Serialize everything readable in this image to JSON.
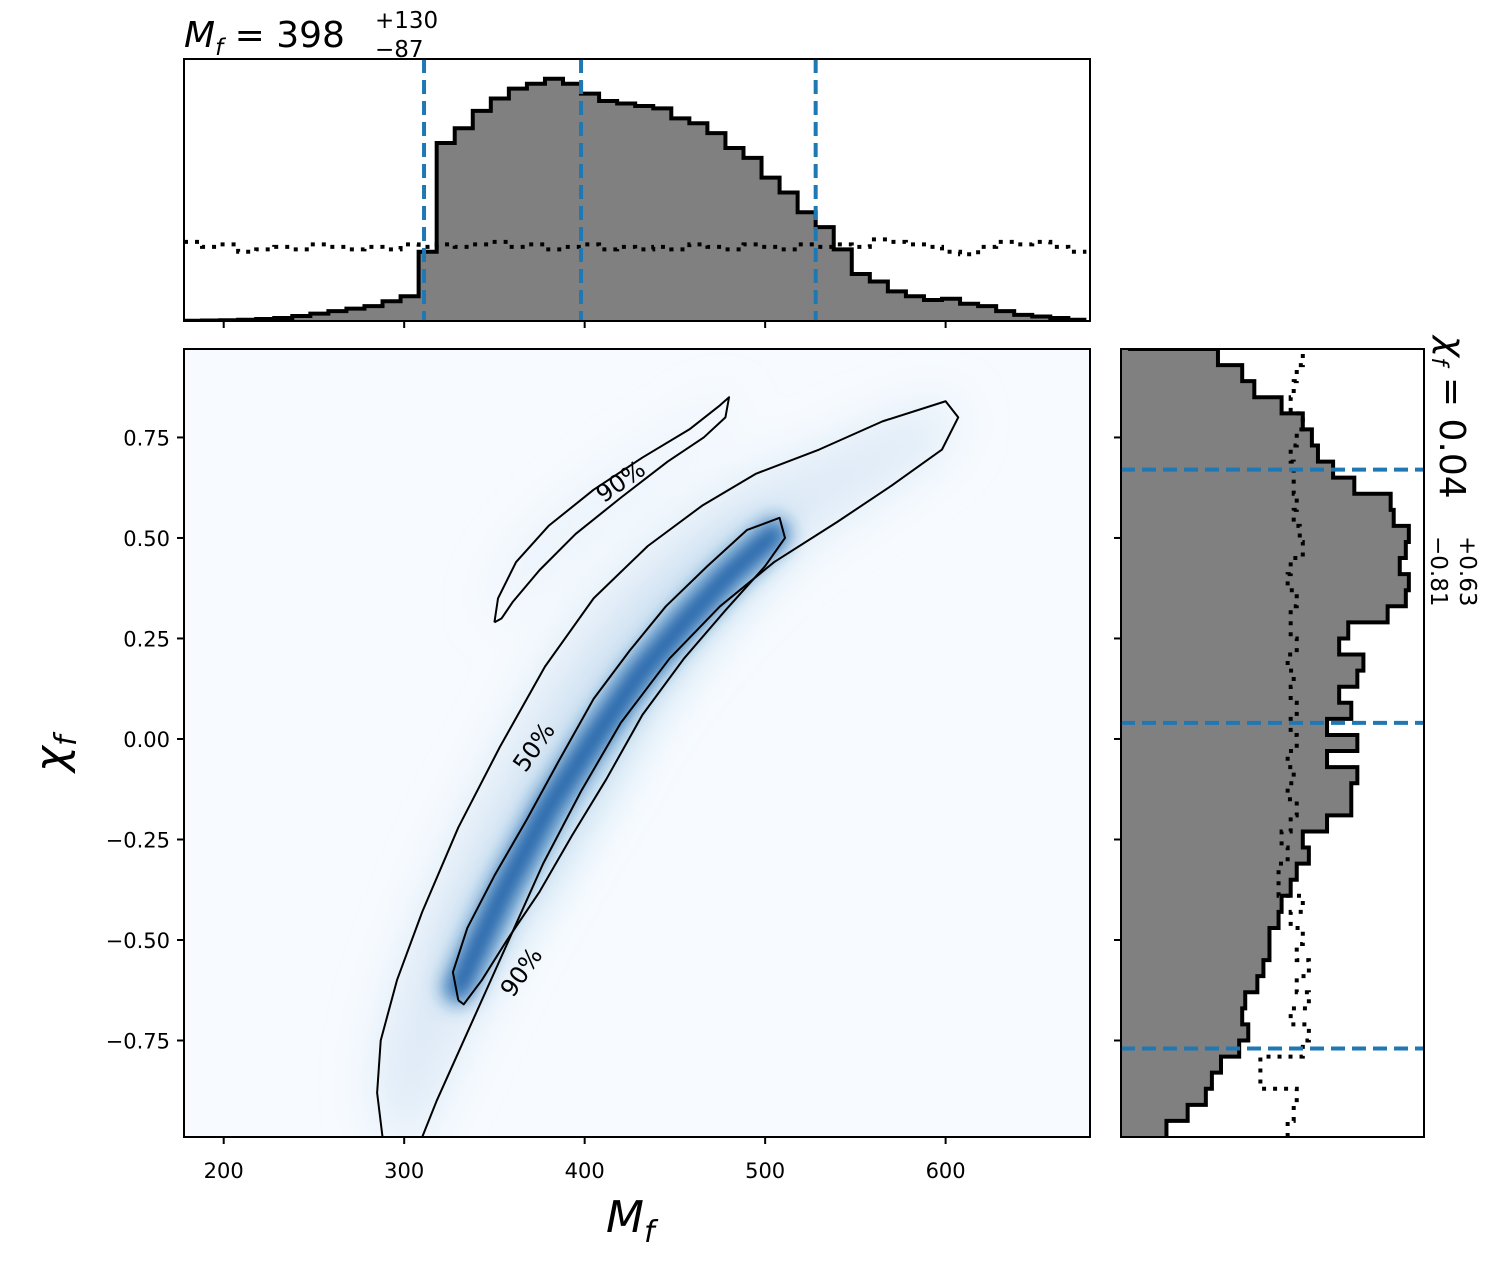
{
  "chart_data": {
    "type": "corner",
    "main": {
      "type": "heatmap",
      "xlabel": "M",
      "xlabel_sub": "f",
      "ylabel": "χ",
      "ylabel_sub": "f",
      "xlim": [
        178,
        680
      ],
      "ylim": [
        -0.99,
        0.97
      ],
      "xticks": [
        200,
        300,
        400,
        500,
        600
      ],
      "yticks": [
        0.75,
        0.5,
        0.25,
        0.0,
        -0.25,
        -0.5,
        -0.75
      ],
      "ytick_labels": [
        "0.75",
        "0.50",
        "0.25",
        "0.00",
        "−0.25",
        "−0.50",
        "−0.75"
      ],
      "colormap": "Blues",
      "density_ridge": {
        "x": [
          330,
          355,
          380,
          405,
          430,
          455,
          480,
          505
        ],
        "y": [
          -0.62,
          -0.38,
          -0.17,
          0.0,
          0.16,
          0.29,
          0.41,
          0.51
        ]
      },
      "contours": [
        {
          "label": "50%",
          "level": 0.5,
          "path": [
            [
              330,
              -0.65
            ],
            [
              327,
              -0.58
            ],
            [
              335,
              -0.47
            ],
            [
              350,
              -0.34
            ],
            [
              368,
              -0.2
            ],
            [
              385,
              -0.06
            ],
            [
              405,
              0.1
            ],
            [
              425,
              0.22
            ],
            [
              445,
              0.33
            ],
            [
              468,
              0.43
            ],
            [
              490,
              0.52
            ],
            [
              508,
              0.55
            ],
            [
              511,
              0.5
            ],
            [
              500,
              0.43
            ],
            [
              478,
              0.32
            ],
            [
              455,
              0.2
            ],
            [
              432,
              0.06
            ],
            [
              412,
              -0.1
            ],
            [
              393,
              -0.24
            ],
            [
              375,
              -0.38
            ],
            [
              357,
              -0.5
            ],
            [
              343,
              -0.6
            ],
            [
              333,
              -0.66
            ],
            [
              330,
              -0.65
            ]
          ]
        },
        {
          "label": "90%",
          "level": 0.9,
          "path": [
            [
              288,
              -0.99
            ],
            [
              285,
              -0.88
            ],
            [
              287,
              -0.75
            ],
            [
              296,
              -0.6
            ],
            [
              310,
              -0.43
            ],
            [
              330,
              -0.22
            ],
            [
              353,
              -0.02
            ],
            [
              378,
              0.18
            ],
            [
              405,
              0.35
            ],
            [
              435,
              0.48
            ],
            [
              465,
              0.58
            ],
            [
              495,
              0.66
            ],
            [
              530,
              0.72
            ],
            [
              565,
              0.79
            ],
            [
              600,
              0.84
            ],
            [
              607,
              0.8
            ],
            [
              598,
              0.72
            ],
            [
              570,
              0.63
            ],
            [
              540,
              0.54
            ],
            [
              505,
              0.44
            ],
            [
              475,
              0.33
            ],
            [
              447,
              0.2
            ],
            [
              420,
              0.04
            ],
            [
              398,
              -0.13
            ],
            [
              377,
              -0.31
            ],
            [
              360,
              -0.48
            ],
            [
              345,
              -0.63
            ],
            [
              330,
              -0.78
            ],
            [
              318,
              -0.9
            ],
            [
              310,
              -0.99
            ]
          ]
        },
        {
          "label": "90%",
          "level": 0.9,
          "path": [
            [
              350,
              0.29
            ],
            [
              352,
              0.35
            ],
            [
              362,
              0.44
            ],
            [
              380,
              0.53
            ],
            [
              405,
              0.62
            ],
            [
              432,
              0.7
            ],
            [
              458,
              0.77
            ],
            [
              475,
              0.83
            ],
            [
              480,
              0.85
            ],
            [
              478,
              0.8
            ],
            [
              466,
              0.75
            ],
            [
              446,
              0.69
            ],
            [
              420,
              0.6
            ],
            [
              395,
              0.51
            ],
            [
              375,
              0.42
            ],
            [
              360,
              0.34
            ],
            [
              354,
              0.3
            ],
            [
              350,
              0.29
            ]
          ]
        }
      ],
      "contour_labels": [
        {
          "text": "90%",
          "x": 420,
          "y": 0.64,
          "rotation": -35
        },
        {
          "text": "50%",
          "x": 372,
          "y": -0.02,
          "rotation": -55
        },
        {
          "text": "90%",
          "x": 365,
          "y": -0.58,
          "rotation": -55
        }
      ]
    },
    "top_hist": {
      "type": "histogram",
      "parameter": "M_f",
      "title_prefix": "M",
      "title_sub": "f",
      "title_value": " = 398",
      "title_plus": "+130",
      "title_minus": "−87",
      "median": 398,
      "upper": 528,
      "lower": 311,
      "x_edges_start": 178,
      "bin_width": 10,
      "posterior": [
        0.001,
        0.002,
        0.003,
        0.005,
        0.008,
        0.012,
        0.02,
        0.03,
        0.04,
        0.05,
        0.06,
        0.08,
        0.1,
        0.28,
        0.72,
        0.78,
        0.85,
        0.9,
        0.94,
        0.96,
        0.98,
        0.96,
        0.92,
        0.89,
        0.88,
        0.87,
        0.86,
        0.82,
        0.8,
        0.76,
        0.7,
        0.66,
        0.58,
        0.52,
        0.44,
        0.38,
        0.29,
        0.19,
        0.16,
        0.12,
        0.1,
        0.085,
        0.09,
        0.07,
        0.06,
        0.04,
        0.025,
        0.018,
        0.012,
        0.005
      ],
      "prior": [
        0.32,
        0.3,
        0.31,
        0.28,
        0.29,
        0.3,
        0.29,
        0.31,
        0.3,
        0.29,
        0.3,
        0.29,
        0.31,
        0.3,
        0.31,
        0.3,
        0.31,
        0.32,
        0.3,
        0.31,
        0.29,
        0.3,
        0.31,
        0.29,
        0.3,
        0.29,
        0.3,
        0.29,
        0.31,
        0.3,
        0.29,
        0.31,
        0.3,
        0.29,
        0.31,
        0.3,
        0.31,
        0.3,
        0.33,
        0.32,
        0.31,
        0.3,
        0.28,
        0.27,
        0.3,
        0.32,
        0.31,
        0.32,
        0.3,
        0.28
      ],
      "ylim": [
        0,
        1.06
      ]
    },
    "right_hist": {
      "type": "histogram",
      "orientation": "horizontal",
      "parameter": "chi_f",
      "title_prefix": "χ",
      "title_sub": "f",
      "title_value": " = 0.04",
      "title_plus": "+0.63",
      "title_minus": "−0.81",
      "median": 0.04,
      "upper": 0.67,
      "lower": -0.77,
      "y_edges_start": -0.99,
      "bin_width": 0.04,
      "posterior": [
        0.15,
        0.22,
        0.28,
        0.3,
        0.33,
        0.39,
        0.42,
        0.4,
        0.41,
        0.45,
        0.47,
        0.49,
        0.49,
        0.52,
        0.53,
        0.56,
        0.58,
        0.62,
        0.6,
        0.68,
        0.76,
        0.76,
        0.78,
        0.68,
        0.78,
        0.68,
        0.76,
        0.72,
        0.78,
        0.8,
        0.72,
        0.75,
        0.88,
        0.94,
        0.95,
        0.92,
        0.94,
        0.95,
        0.9,
        0.89,
        0.77,
        0.7,
        0.65,
        0.63,
        0.6,
        0.53,
        0.44,
        0.4,
        0.32,
        0.03
      ],
      "prior": [
        0.55,
        0.57,
        0.58,
        0.46,
        0.46,
        0.6,
        0.62,
        0.56,
        0.62,
        0.58,
        0.62,
        0.58,
        0.6,
        0.56,
        0.6,
        0.52,
        0.52,
        0.55,
        0.53,
        0.56,
        0.58,
        0.55,
        0.57,
        0.55,
        0.58,
        0.56,
        0.58,
        0.56,
        0.57,
        0.55,
        0.58,
        0.56,
        0.56,
        0.58,
        0.55,
        0.56,
        0.6,
        0.59,
        0.57,
        0.58,
        0.57,
        0.57,
        0.56,
        0.58,
        0.6,
        0.56,
        0.57,
        0.58,
        0.6,
        0.6
      ],
      "xlim": [
        0,
        1.0
      ]
    },
    "colors": {
      "posterior_fill": "#808080",
      "posterior_edge": "#000000",
      "prior_line": "#000000",
      "quantile_line": "#1f77b4",
      "contour_line": "#000000"
    }
  }
}
